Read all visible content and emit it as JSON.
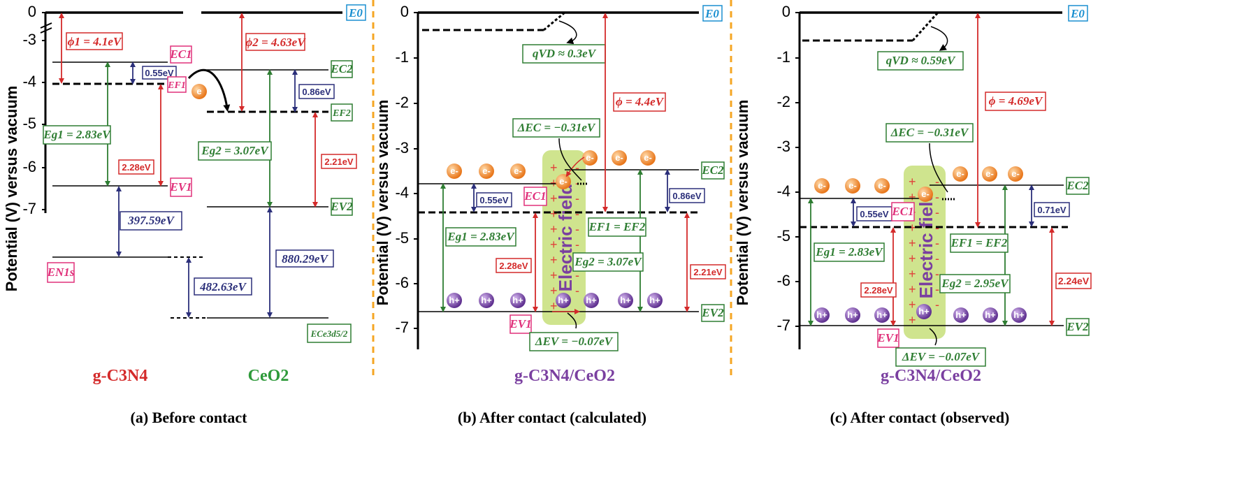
{
  "panels": {
    "a": {
      "caption": "(a) Before contact",
      "material_left": "g-C3N4",
      "material_right": "CeO2",
      "y_ticks": [
        "0",
        "-3",
        "-4",
        "-5",
        "-6",
        "-7"
      ],
      "labels": {
        "E0": "E0",
        "phi1": "ϕ1 = 4.1eV",
        "phi2": "ϕ2 = 4.63eV",
        "EC1": "EC1",
        "EF1": "EF1",
        "EV1": "EV1",
        "EC2": "EC2",
        "EF2": "EF2",
        "EV2": "EV2",
        "gap_c1": "0.55eV",
        "gap_c2": "0.86eV",
        "Eg1": "Eg1 = 2.83eV",
        "Eg2": "Eg2 = 3.07eV",
        "gap_v1": "2.28eV",
        "gap_v2": "2.21eV",
        "N1s_gap": "397.59eV",
        "Ce3d_gap": "880.29eV",
        "core_diff": "482.63eV",
        "EN1s": "EN1s",
        "ECe3d": "ECe3d5/2"
      }
    },
    "b": {
      "caption": "(b) After contact (calculated)",
      "material": "g-C3N4/CeO2",
      "y_label": "Potential (V) versus vacuum",
      "y_ticks": [
        "0",
        "-1",
        "-2",
        "-3",
        "-4",
        "-5",
        "-6",
        "-7"
      ],
      "labels": {
        "E0": "E0",
        "qVD": "qVD ≈ 0.3eV",
        "phi": "ϕ = 4.4eV",
        "dEC": "ΔEC = −0.31eV",
        "dEV": "ΔEV = −0.07eV",
        "EC1": "EC1",
        "EC2": "EC2",
        "EV1": "EV1",
        "EV2": "EV2",
        "gap_c1": "0.55eV",
        "gap_c2": "0.86eV",
        "EF": "EF1 = EF2",
        "Eg1": "Eg1 = 2.83eV",
        "Eg2": "Eg2 = 3.07eV",
        "gap_v1": "2.28eV",
        "gap_v2": "2.21eV",
        "field": "Electric field",
        "electron": "e-",
        "hole": "h+"
      }
    },
    "c": {
      "caption": "(c) After contact (observed)",
      "material": "g-C3N4/CeO2",
      "y_label": "Potential (V) versus vacuum",
      "y_ticks": [
        "0",
        "-1",
        "-2",
        "-3",
        "-4",
        "-5",
        "-6",
        "-7"
      ],
      "labels": {
        "E0": "E0",
        "qVD": "qVD ≈ 0.59eV",
        "phi": "ϕ = 4.69eV",
        "dEC": "ΔEC = −0.31eV",
        "dEV": "ΔEV = −0.07eV",
        "EC1": "EC1",
        "EC2": "EC2",
        "EV1": "EV1",
        "EV2": "EV2",
        "gap_c1": "0.55eV",
        "gap_c2": "0.71eV",
        "EF": "EF1 = EF2",
        "Eg1": "Eg1 = 2.83eV",
        "Eg2": "Eg2 = 2.95eV",
        "gap_v1": "2.28eV",
        "gap_v2": "2.24eV",
        "field": "Electric field"
      }
    },
    "a_y_label": "Potential (V) versus vacuum"
  },
  "colors": {
    "red": "#d42a2a",
    "green": "#2e7d32",
    "navy": "#2b2f7a",
    "pink": "#e0307a",
    "cyan": "#1a8fd0",
    "orange_div": "#f5a623",
    "field_fill": "#c7df7a",
    "electron": "#f08a24",
    "hole": "#7b4aa8"
  }
}
